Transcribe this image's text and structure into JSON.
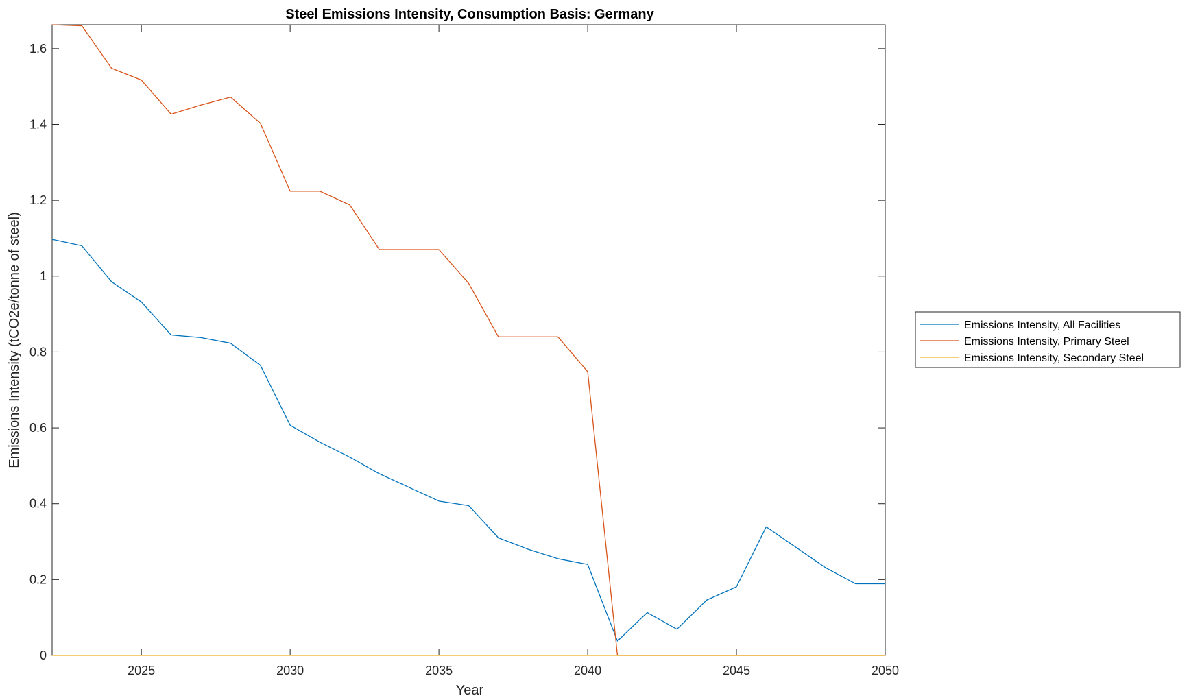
{
  "chart_data": {
    "type": "line",
    "title": "Steel Emissions Intensity, Consumption Basis: Germany",
    "xlabel": "Year",
    "ylabel": "Emissions Intensity (tCO2e/tonne of steel)",
    "xlim": [
      2022,
      2050
    ],
    "ylim": [
      0,
      1.663
    ],
    "xticks": [
      "2025",
      "2030",
      "2035",
      "2040",
      "2045",
      "2050"
    ],
    "yticks": [
      "0",
      "0.2",
      "0.4",
      "0.6",
      "0.8",
      "1",
      "1.2",
      "1.4",
      "1.6"
    ],
    "grid": false,
    "legend_position": "outside-right",
    "x": [
      2022,
      2023,
      2024,
      2025,
      2026,
      2027,
      2028,
      2029,
      2030,
      2031,
      2032,
      2033,
      2034,
      2035,
      2036,
      2037,
      2038,
      2039,
      2040,
      2041,
      2042,
      2043,
      2044,
      2045,
      2046,
      2047,
      2048,
      2049,
      2050
    ],
    "series": [
      {
        "name": "Emissions Intensity, All Facilities",
        "color": "#0072BD",
        "values": [
          1.097,
          1.08,
          0.985,
          0.932,
          0.845,
          0.838,
          0.823,
          0.765,
          0.607,
          0.562,
          0.523,
          0.479,
          0.443,
          0.407,
          0.395,
          0.31,
          0.28,
          0.255,
          0.24,
          0.038,
          0.113,
          0.069,
          0.146,
          0.181,
          0.339,
          0.285,
          0.231,
          0.189,
          0.189
        ]
      },
      {
        "name": "Emissions Intensity, Primary Steel",
        "color": "#D95319",
        "values": [
          1.663,
          1.66,
          1.548,
          1.517,
          1.427,
          1.451,
          1.472,
          1.403,
          1.224,
          1.224,
          1.188,
          1.07,
          1.07,
          1.07,
          0.981,
          0.84,
          0.84,
          0.84,
          0.748,
          0.0,
          0.0,
          0.0,
          0.0,
          0.0,
          0.0,
          0.0,
          0.0,
          0.0,
          0.0
        ]
      },
      {
        "name": "Emissions Intensity, Secondary Steel",
        "color": "#EDB120",
        "values": [
          0,
          0,
          0,
          0,
          0,
          0,
          0,
          0,
          0,
          0,
          0,
          0,
          0,
          0,
          0,
          0,
          0,
          0,
          0,
          0,
          0,
          0,
          0,
          0,
          0,
          0,
          0,
          0,
          0
        ]
      }
    ]
  }
}
